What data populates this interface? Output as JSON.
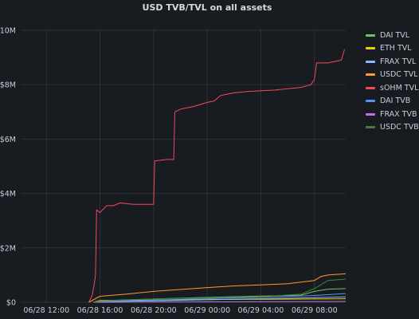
{
  "chart_data": {
    "type": "line",
    "title": "USD TVB/TVL on all assets",
    "xlabel": "",
    "ylabel": "",
    "y_ticks": [
      "$0",
      "$2M",
      "$4M",
      "$6M",
      "$8M",
      "$10M"
    ],
    "y_tick_values": [
      0,
      2000000,
      4000000,
      6000000,
      8000000,
      10000000
    ],
    "ylim": [
      0,
      10000000
    ],
    "x_ticks": [
      "06/28 12:00",
      "06/28 16:00",
      "06/28 20:00",
      "06/29 00:00",
      "06/29 04:00",
      "06/29 08:00"
    ],
    "x_tick_values": [
      "2021-06-28 12:00",
      "2021-06-28 16:00",
      "2021-06-28 20:00",
      "2021-06-29 00:00",
      "2021-06-29 04:00",
      "2021-06-29 08:00"
    ],
    "xlim": [
      "2021-06-28 10:05",
      "2021-06-29 10:20"
    ],
    "grid": true,
    "legend_position": "right",
    "series": [
      {
        "name": "DAI TVL",
        "color": "#73bf69",
        "points": [
          [
            "2021-06-28 15:30",
            0
          ],
          [
            "2021-06-28 16:00",
            60000
          ],
          [
            "2021-06-28 20:00",
            120000
          ],
          [
            "2021-06-29 00:00",
            180000
          ],
          [
            "2021-06-29 04:00",
            230000
          ],
          [
            "2021-06-29 07:00",
            260000
          ],
          [
            "2021-06-29 08:00",
            400000
          ],
          [
            "2021-06-29 09:00",
            480000
          ],
          [
            "2021-06-29 10:20",
            500000
          ]
        ]
      },
      {
        "name": "ETH TVL",
        "color": "#f2cc0c",
        "points": [
          [
            "2021-06-28 15:30",
            0
          ],
          [
            "2021-06-28 16:00",
            70000
          ],
          [
            "2021-06-28 20:00",
            80000
          ],
          [
            "2021-06-29 00:00",
            100000
          ],
          [
            "2021-06-29 04:00",
            110000
          ],
          [
            "2021-06-29 08:00",
            120000
          ],
          [
            "2021-06-29 10:20",
            130000
          ]
        ]
      },
      {
        "name": "FRAX TVL",
        "color": "#8ab8ff",
        "points": [
          [
            "2021-06-28 15:30",
            0
          ],
          [
            "2021-06-28 16:00",
            20000
          ],
          [
            "2021-06-28 20:00",
            50000
          ],
          [
            "2021-06-29 00:00",
            90000
          ],
          [
            "2021-06-29 04:00",
            130000
          ],
          [
            "2021-06-29 08:00",
            170000
          ],
          [
            "2021-06-29 10:20",
            200000
          ]
        ]
      },
      {
        "name": "USDC TVL",
        "color": "#ff9830",
        "points": [
          [
            "2021-06-28 15:10",
            0
          ],
          [
            "2021-06-28 16:00",
            220000
          ],
          [
            "2021-06-28 18:00",
            300000
          ],
          [
            "2021-06-28 20:00",
            400000
          ],
          [
            "2021-06-28 22:00",
            470000
          ],
          [
            "2021-06-29 00:00",
            540000
          ],
          [
            "2021-06-29 02:00",
            600000
          ],
          [
            "2021-06-29 04:00",
            640000
          ],
          [
            "2021-06-29 06:00",
            680000
          ],
          [
            "2021-06-29 08:00",
            800000
          ],
          [
            "2021-06-29 08:30",
            950000
          ],
          [
            "2021-06-29 09:00",
            1000000
          ],
          [
            "2021-06-29 10:20",
            1050000
          ]
        ]
      },
      {
        "name": "sOHM TVL",
        "color": "#f2495c",
        "points": [
          [
            "2021-06-28 15:10",
            0
          ],
          [
            "2021-06-28 15:25",
            250000
          ],
          [
            "2021-06-28 15:35",
            700000
          ],
          [
            "2021-06-28 15:40",
            1000000
          ],
          [
            "2021-06-28 15:45",
            3400000
          ],
          [
            "2021-06-28 16:00",
            3300000
          ],
          [
            "2021-06-28 16:30",
            3550000
          ],
          [
            "2021-06-28 17:00",
            3550000
          ],
          [
            "2021-06-28 17:30",
            3650000
          ],
          [
            "2021-06-28 18:30",
            3600000
          ],
          [
            "2021-06-28 19:30",
            3600000
          ],
          [
            "2021-06-28 20:00",
            3600000
          ],
          [
            "2021-06-28 20:05",
            5200000
          ],
          [
            "2021-06-28 21:00",
            5250000
          ],
          [
            "2021-06-28 21:30",
            5250000
          ],
          [
            "2021-06-28 21:35",
            7000000
          ],
          [
            "2021-06-28 22:00",
            7100000
          ],
          [
            "2021-06-28 23:00",
            7200000
          ],
          [
            "2021-06-29 00:00",
            7350000
          ],
          [
            "2021-06-29 00:30",
            7400000
          ],
          [
            "2021-06-29 01:00",
            7600000
          ],
          [
            "2021-06-29 02:00",
            7700000
          ],
          [
            "2021-06-29 03:00",
            7750000
          ],
          [
            "2021-06-29 04:00",
            7780000
          ],
          [
            "2021-06-29 05:00",
            7800000
          ],
          [
            "2021-06-29 06:00",
            7850000
          ],
          [
            "2021-06-29 07:00",
            7900000
          ],
          [
            "2021-06-29 07:45",
            8000000
          ],
          [
            "2021-06-29 08:00",
            8200000
          ],
          [
            "2021-06-29 08:10",
            8800000
          ],
          [
            "2021-06-29 09:00",
            8800000
          ],
          [
            "2021-06-29 10:00",
            8900000
          ],
          [
            "2021-06-29 10:15",
            9300000
          ]
        ]
      },
      {
        "name": "DAI TVB",
        "color": "#5794f2",
        "points": [
          [
            "2021-06-28 15:30",
            0
          ],
          [
            "2021-06-28 16:00",
            30000
          ],
          [
            "2021-06-28 20:00",
            80000
          ],
          [
            "2021-06-29 00:00",
            130000
          ],
          [
            "2021-06-29 04:00",
            180000
          ],
          [
            "2021-06-29 08:00",
            250000
          ],
          [
            "2021-06-29 10:20",
            320000
          ]
        ]
      },
      {
        "name": "FRAX TVB",
        "color": "#b877d9",
        "points": [
          [
            "2021-06-28 15:30",
            0
          ],
          [
            "2021-06-28 20:00",
            10000
          ],
          [
            "2021-06-29 00:00",
            15000
          ],
          [
            "2021-06-29 04:00",
            20000
          ],
          [
            "2021-06-29 08:00",
            25000
          ],
          [
            "2021-06-29 10:20",
            30000
          ]
        ]
      },
      {
        "name": "USDC TVB",
        "color": "#37872d",
        "points": [
          [
            "2021-06-28 15:30",
            0
          ],
          [
            "2021-06-28 16:00",
            50000
          ],
          [
            "2021-06-28 20:00",
            120000
          ],
          [
            "2021-06-29 00:00",
            160000
          ],
          [
            "2021-06-29 04:00",
            200000
          ],
          [
            "2021-06-29 07:00",
            300000
          ],
          [
            "2021-06-29 08:00",
            500000
          ],
          [
            "2021-06-29 08:30",
            650000
          ],
          [
            "2021-06-29 09:00",
            800000
          ],
          [
            "2021-06-29 10:20",
            850000
          ]
        ]
      }
    ]
  }
}
